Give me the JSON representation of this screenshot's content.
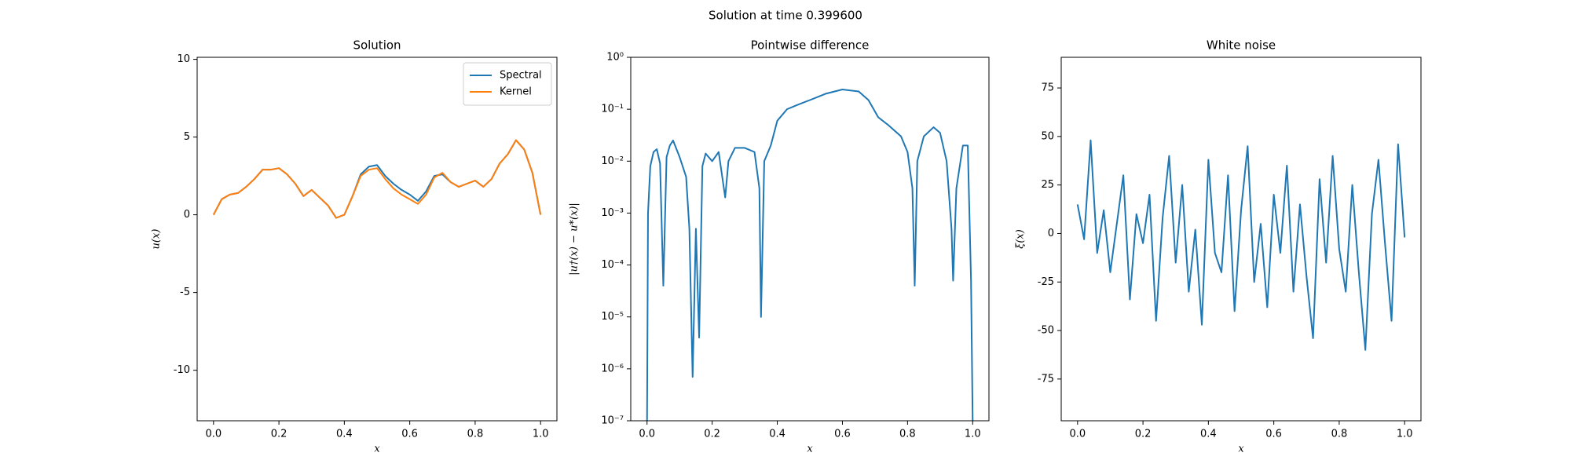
{
  "title": "Solution at time 0.399600",
  "chart_data": [
    {
      "type": "line",
      "title": "Solution",
      "xlabel": "x",
      "ylabel": "u(x)",
      "legend": "upper right",
      "xlim": [
        -0.05,
        1.05
      ],
      "xticks": [
        {
          "value": 0,
          "label": "0.0"
        },
        {
          "value": 0.2,
          "label": "0.2"
        },
        {
          "value": 0.4,
          "label": "0.4"
        },
        {
          "value": 0.6,
          "label": "0.6"
        },
        {
          "value": 0.8,
          "label": "0.8"
        },
        {
          "value": 1,
          "label": "1.0"
        }
      ],
      "ylim": [
        -13.25,
        10.13
      ],
      "yticks": [
        -10,
        -5,
        0,
        5,
        10
      ],
      "x": [
        0,
        0.025,
        0.05,
        0.075,
        0.1,
        0.125,
        0.15,
        0.175,
        0.2,
        0.225,
        0.25,
        0.275,
        0.3,
        0.325,
        0.35,
        0.375,
        0.4,
        0.425,
        0.45,
        0.475,
        0.5,
        0.525,
        0.55,
        0.575,
        0.6,
        0.625,
        0.65,
        0.675,
        0.7,
        0.725,
        0.75,
        0.775,
        0.8,
        0.825,
        0.85,
        0.875,
        0.9,
        0.925,
        0.95,
        0.975,
        1.0
      ],
      "series": [
        {
          "name": "Spectral",
          "color": "#1f77b4",
          "values": [
            0,
            1.0,
            1.3,
            1.4,
            1.8,
            2.3,
            2.9,
            2.9,
            3.0,
            2.6,
            2.0,
            1.2,
            1.6,
            1.1,
            0.6,
            -0.2,
            0,
            1.2,
            2.6,
            3.1,
            3.2,
            2.5,
            2.0,
            1.6,
            1.3,
            0.9,
            1.5,
            2.5,
            2.6,
            2.1,
            1.8,
            2.0,
            2.2,
            1.8,
            2.3,
            3.3,
            3.9,
            4.8,
            4.2,
            2.7,
            0
          ]
        },
        {
          "name": "Kernel",
          "color": "#ff7f0e",
          "values": [
            0,
            1.0,
            1.3,
            1.4,
            1.8,
            2.3,
            2.9,
            2.9,
            3.0,
            2.6,
            2.0,
            1.2,
            1.6,
            1.1,
            0.6,
            -0.2,
            0,
            1.2,
            2.5,
            2.9,
            3.0,
            2.3,
            1.7,
            1.3,
            1.0,
            0.7,
            1.3,
            2.4,
            2.7,
            2.1,
            1.8,
            2.0,
            2.2,
            1.8,
            2.3,
            3.3,
            3.9,
            4.8,
            4.2,
            2.7,
            0
          ]
        }
      ]
    },
    {
      "type": "line",
      "title": "Pointwise difference",
      "xlabel": "x",
      "ylabel": "|u†(x) − u*(x)|",
      "log_y": true,
      "xlim": [
        -0.05,
        1.05
      ],
      "xticks": [
        {
          "value": 0,
          "label": "0.0"
        },
        {
          "value": 0.2,
          "label": "0.2"
        },
        {
          "value": 0.4,
          "label": "0.4"
        },
        {
          "value": 0.6,
          "label": "0.6"
        },
        {
          "value": 0.8,
          "label": "0.8"
        },
        {
          "value": 1,
          "label": "1.0"
        }
      ],
      "ylim": [
        1e-07,
        1
      ],
      "yticks": [
        {
          "value": 1e-07,
          "label": "10⁻⁷"
        },
        {
          "value": 1e-06,
          "label": "10⁻⁶"
        },
        {
          "value": 1e-05,
          "label": "10⁻⁵"
        },
        {
          "value": 0.0001,
          "label": "10⁻⁴"
        },
        {
          "value": 0.001,
          "label": "10⁻³"
        },
        {
          "value": 0.01,
          "label": "10⁻²"
        },
        {
          "value": 0.1,
          "label": "10⁻¹"
        },
        {
          "value": 1,
          "label": "10⁰"
        }
      ],
      "x": [
        0,
        0.003,
        0.01,
        0.02,
        0.03,
        0.04,
        0.05,
        0.06,
        0.07,
        0.08,
        0.1,
        0.12,
        0.13,
        0.14,
        0.15,
        0.16,
        0.17,
        0.18,
        0.2,
        0.22,
        0.24,
        0.25,
        0.27,
        0.3,
        0.33,
        0.345,
        0.35,
        0.36,
        0.38,
        0.4,
        0.43,
        0.46,
        0.5,
        0.55,
        0.6,
        0.65,
        0.68,
        0.71,
        0.74,
        0.78,
        0.8,
        0.815,
        0.822,
        0.83,
        0.85,
        0.88,
        0.9,
        0.92,
        0.935,
        0.94,
        0.95,
        0.97,
        0.985,
        0.995,
        1.0
      ],
      "series": [
        {
          "color": "#1f77b4",
          "values": [
            1e-07,
            0.001,
            0.008,
            0.015,
            0.017,
            0.009,
            4e-05,
            0.012,
            0.02,
            0.025,
            0.012,
            0.005,
            0.0005,
            7e-07,
            0.0005,
            4e-06,
            0.008,
            0.014,
            0.01,
            0.015,
            0.002,
            0.01,
            0.018,
            0.018,
            0.015,
            0.003,
            1e-05,
            0.01,
            0.02,
            0.06,
            0.1,
            0.12,
            0.15,
            0.2,
            0.24,
            0.22,
            0.15,
            0.07,
            0.05,
            0.03,
            0.015,
            0.003,
            4e-05,
            0.01,
            0.03,
            0.045,
            0.035,
            0.01,
            0.0005,
            5e-05,
            0.003,
            0.02,
            0.02,
            5e-05,
            1e-07
          ]
        }
      ]
    },
    {
      "type": "line",
      "title": "White noise",
      "xlabel": "x",
      "ylabel": "ξ(x)",
      "xlim": [
        -0.05,
        1.05
      ],
      "xticks": [
        {
          "value": 0,
          "label": "0.0"
        },
        {
          "value": 0.2,
          "label": "0.2"
        },
        {
          "value": 0.4,
          "label": "0.4"
        },
        {
          "value": 0.6,
          "label": "0.6"
        },
        {
          "value": 0.8,
          "label": "0.8"
        },
        {
          "value": 1,
          "label": "1.0"
        }
      ],
      "ylim": [
        -96.5,
        90.8
      ],
      "yticks": [
        -75,
        -50,
        -25,
        0,
        25,
        50,
        75
      ],
      "x": [
        0,
        0.02,
        0.04,
        0.06,
        0.08,
        0.1,
        0.12,
        0.14,
        0.16,
        0.18,
        0.2,
        0.22,
        0.24,
        0.26,
        0.28,
        0.3,
        0.32,
        0.34,
        0.36,
        0.38,
        0.4,
        0.42,
        0.44,
        0.46,
        0.48,
        0.5,
        0.52,
        0.54,
        0.56,
        0.58,
        0.6,
        0.62,
        0.64,
        0.66,
        0.68,
        0.7,
        0.72,
        0.74,
        0.76,
        0.78,
        0.8,
        0.82,
        0.84,
        0.86,
        0.88,
        0.9,
        0.92,
        0.94,
        0.96,
        0.98,
        1.0
      ],
      "series": [
        {
          "color": "#1f77b4",
          "values": [
            15,
            -3,
            48,
            -10,
            12,
            -20,
            5,
            30,
            -34,
            10,
            -5,
            20,
            -45,
            8,
            40,
            -15,
            25,
            -30,
            2,
            -47,
            38,
            -10,
            -20,
            30,
            -40,
            12,
            45,
            -25,
            5,
            -38,
            20,
            -10,
            35,
            -30,
            15,
            -22,
            -54,
            28,
            -15,
            40,
            -8,
            -30,
            25,
            -20,
            -60,
            10,
            38,
            -5,
            -45,
            46,
            -2
          ]
        }
      ]
    }
  ]
}
